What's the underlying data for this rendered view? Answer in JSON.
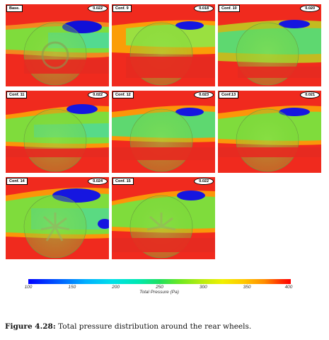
{
  "panels": [
    {
      "label": "Base.",
      "value": "0.022"
    },
    {
      "label": "Conf. 9",
      "value": "0.018"
    },
    {
      "label": "Conf. 10",
      "value": "0.020"
    },
    {
      "label": "Conf. 11",
      "value": "0.022"
    },
    {
      "label": "Conf. 12",
      "value": "0.023"
    },
    {
      "label": "Conf.13",
      "value": "0.021"
    },
    {
      "label": "Conf. 14",
      "value": "0.024"
    },
    {
      "label": "Conf. 15",
      "value": "0.022"
    }
  ],
  "colorbar": {
    "ticks": [
      "100",
      "150",
      "200",
      "250",
      "300",
      "350",
      "400"
    ],
    "title": "Total Pressure (Pa)"
  },
  "caption": {
    "label": "Figure 4.28:",
    "text": "Total pressure distribution around the rear wheels."
  }
}
